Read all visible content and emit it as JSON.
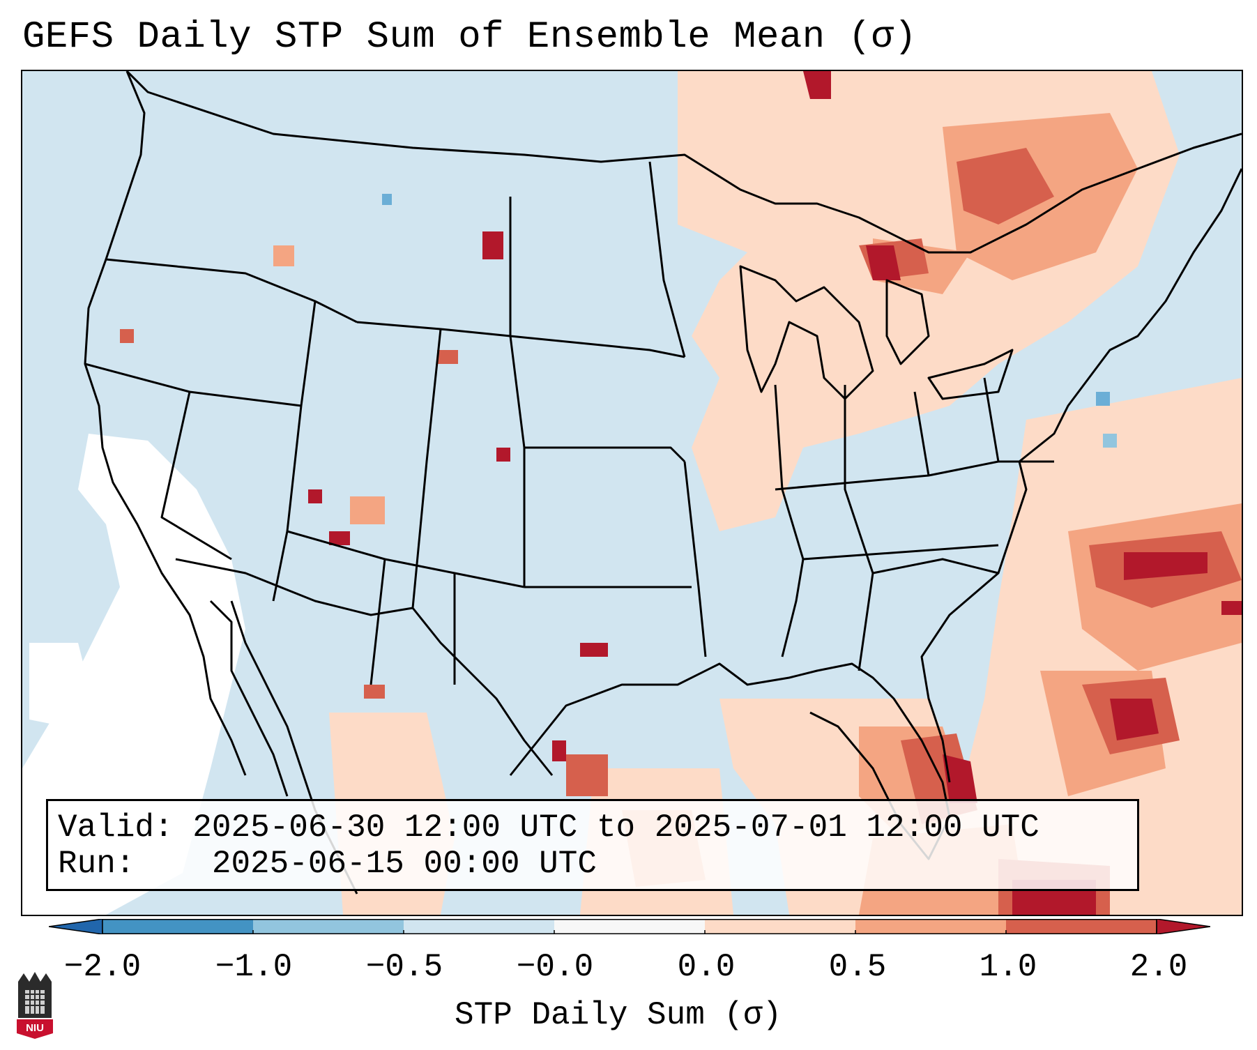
{
  "title": "GEFS Daily STP Sum of Ensemble Mean (σ)",
  "info": {
    "valid_label": "Valid:",
    "valid_value": "2025-06-30 12:00 UTC to 2025-07-01 12:00 UTC",
    "run_label": "Run:",
    "run_value": "2025-06-15 00:00 UTC"
  },
  "colorbar": {
    "label": "STP Daily Sum (σ)",
    "ticks": [
      "−2.0",
      "−1.0",
      "−0.5",
      "−0.0",
      "0.0",
      "0.5",
      "1.0",
      "2.0"
    ],
    "colors": [
      "#4393c3",
      "#92c5de",
      "#d1e5f0",
      "#f7f7f7",
      "#fddbc7",
      "#f4a582",
      "#d6604d"
    ],
    "extend_low": "#2166ac",
    "extend_high": "#b2182b"
  },
  "map": {
    "ocean_color": "#d1e5f0",
    "land_border_color": "#000000"
  },
  "logo_text": "NIU"
}
